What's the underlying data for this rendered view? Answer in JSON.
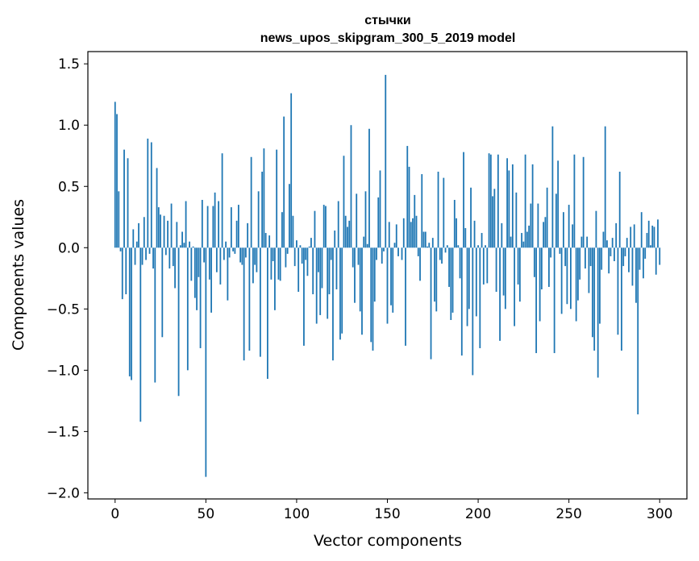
{
  "chart_data": {
    "type": "bar",
    "title_line1": "стычки",
    "title_line2": "news_upos_skipgram_300_5_2019 model",
    "xlabel": "Vector components",
    "ylabel": "Components values",
    "xlim": [
      -15,
      315
    ],
    "ylim": [
      -2.05,
      1.6
    ],
    "xticks": [
      0,
      50,
      100,
      150,
      200,
      250,
      300
    ],
    "xtick_labels": [
      "0",
      "50",
      "100",
      "150",
      "200",
      "250",
      "300"
    ],
    "yticks": [
      1.5,
      1.0,
      0.5,
      0.0,
      -0.5,
      -1.0,
      -1.5,
      -2.0
    ],
    "ytick_labels": [
      "1.5",
      "1.0",
      "0.5",
      "0.0",
      "−0.5",
      "−1.0",
      "−1.5",
      "−2.0"
    ],
    "bar_color": "#1f77b4",
    "values": [
      1.19,
      1.09,
      0.46,
      -0.03,
      -0.42,
      0.8,
      -0.38,
      0.73,
      -1.05,
      -1.08,
      0.15,
      -0.14,
      0.05,
      0.2,
      -1.42,
      -0.14,
      0.25,
      -0.1,
      0.89,
      -0.05,
      0.86,
      -0.17,
      -1.1,
      0.65,
      0.33,
      0.27,
      -0.73,
      0.26,
      -0.06,
      0.22,
      -0.17,
      0.36,
      -0.15,
      -0.33,
      0.21,
      -1.21,
      0.02,
      0.13,
      0.04,
      0.38,
      -1.0,
      0.05,
      -0.27,
      0.01,
      -0.41,
      -0.51,
      -0.24,
      -0.82,
      0.39,
      -0.12,
      -1.87,
      0.34,
      -0.26,
      -0.53,
      0.34,
      0.45,
      -0.2,
      0.38,
      -0.3,
      0.77,
      -0.1,
      0.05,
      -0.43,
      -0.08,
      0.33,
      -0.03,
      -0.05,
      0.22,
      0.35,
      -0.12,
      -0.14,
      -0.92,
      -0.08,
      0.2,
      -0.84,
      0.74,
      -0.29,
      -0.14,
      -0.2,
      0.46,
      -0.89,
      0.62,
      0.81,
      0.12,
      -1.07,
      0.1,
      -0.26,
      -0.11,
      -0.51,
      0.8,
      -0.26,
      -0.27,
      0.29,
      1.07,
      -0.16,
      -0.05,
      0.52,
      1.26,
      0.26,
      -0.15,
      0.06,
      -0.36,
      0.02,
      -0.13,
      -0.8,
      -0.1,
      -0.23,
      0.01,
      0.08,
      -0.38,
      0.3,
      -0.62,
      -0.2,
      -0.55,
      -0.33,
      0.35,
      0.34,
      -0.58,
      -0.38,
      -0.1,
      -0.92,
      0.14,
      -0.34,
      0.38,
      -0.75,
      -0.7,
      0.75,
      0.26,
      0.17,
      0.22,
      1.0,
      -0.16,
      -0.45,
      0.44,
      -0.14,
      -0.52,
      -0.71,
      0.09,
      0.46,
      0.03,
      0.97,
      -0.77,
      -0.84,
      -0.44,
      -0.1,
      0.41,
      0.63,
      -0.13,
      -0.03,
      1.41,
      -0.62,
      0.21,
      -0.47,
      -0.53,
      0.04,
      0.19,
      -0.07,
      0.0,
      -0.1,
      0.24,
      -0.8,
      0.83,
      0.66,
      0.21,
      0.24,
      0.43,
      0.26,
      -0.07,
      -0.27,
      0.6,
      0.13,
      0.13,
      0.01,
      0.04,
      -0.91,
      0.08,
      -0.44,
      -0.52,
      0.62,
      -0.1,
      -0.13,
      0.57,
      -0.04,
      0.02,
      -0.32,
      -0.59,
      -0.53,
      0.39,
      0.24,
      0.02,
      -0.25,
      -0.88,
      0.78,
      0.16,
      -0.64,
      -0.5,
      0.49,
      -1.04,
      0.22,
      -0.56,
      0.02,
      -0.82,
      0.12,
      -0.3,
      0.02,
      -0.29,
      0.77,
      0.76,
      0.42,
      0.48,
      -0.36,
      0.76,
      -0.76,
      0.2,
      -0.39,
      -0.5,
      0.73,
      0.63,
      0.09,
      0.68,
      -0.64,
      0.45,
      -0.3,
      -0.44,
      0.12,
      0.05,
      0.76,
      0.13,
      0.18,
      0.36,
      0.68,
      -0.24,
      -0.86,
      0.36,
      -0.6,
      -0.34,
      0.21,
      0.25,
      0.49,
      -0.32,
      -0.08,
      0.99,
      -0.86,
      0.44,
      0.71,
      -0.05,
      -0.54,
      0.29,
      -0.15,
      -0.46,
      0.35,
      -0.5,
      0.19,
      0.76,
      -0.6,
      -0.43,
      -0.26,
      0.09,
      0.74,
      -0.17,
      0.09,
      -0.37,
      -0.15,
      -0.73,
      -0.84,
      0.3,
      -1.06,
      -0.62,
      -0.18,
      0.13,
      0.99,
      0.06,
      -0.21,
      -0.07,
      0.08,
      -0.11,
      0.2,
      -0.71,
      0.62,
      -0.84,
      -0.15,
      -0.07,
      0.08,
      -0.2,
      0.17,
      -0.31,
      0.19,
      -0.45,
      -1.36,
      -0.18,
      0.29,
      -0.25,
      -0.09,
      0.12,
      0.22,
      0.02,
      0.18,
      0.17,
      -0.22,
      0.23,
      -0.14
    ]
  }
}
